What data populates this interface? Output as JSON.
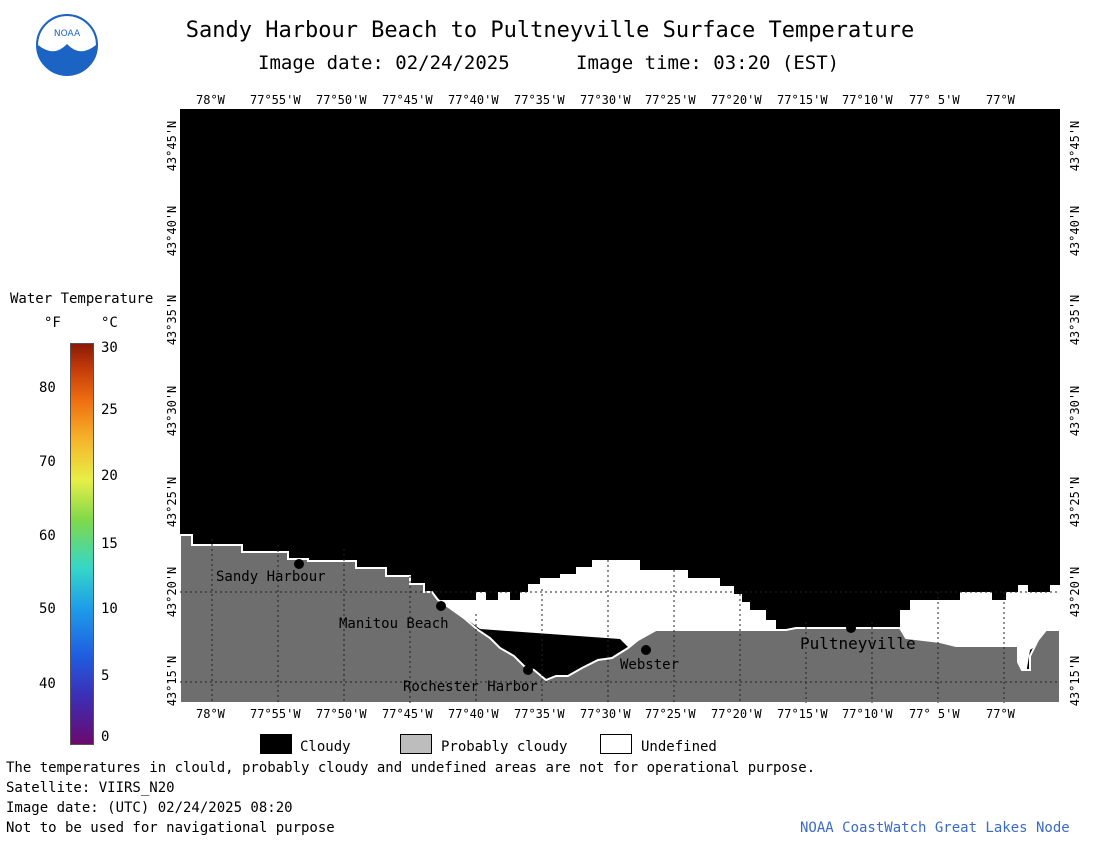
{
  "title": "Sandy Harbour Beach to Pultneyville Surface Temperature",
  "image_date_label": "Image date: 02/24/2025",
  "image_time_label": "Image time: 03:20 (EST)",
  "lon_ticks": [
    "78°W",
    "77°55'W",
    "77°50'W",
    "77°45'W",
    "77°40'W",
    "77°35'W",
    "77°30'W",
    "77°25'W",
    "77°20'W",
    "77°15'W",
    "77°10'W",
    "77° 5'W",
    "77°W"
  ],
  "lat_ticks": [
    "43°45'N",
    "43°40'N",
    "43°35'N",
    "43°30'N",
    "43°25'N",
    "43°20'N",
    "43°15'N"
  ],
  "places": [
    {
      "name": "Sandy Harbour"
    },
    {
      "name": "Manitou Beach"
    },
    {
      "name": "Rochester Harbor"
    },
    {
      "name": "Webster"
    },
    {
      "name": "Pultneyville"
    }
  ],
  "scale": {
    "title": "Water Temperature",
    "unit_f": "°F",
    "unit_c": "°C",
    "f_ticks": [
      "80",
      "70",
      "60",
      "50",
      "40"
    ],
    "c_ticks": [
      "30",
      "25",
      "20",
      "15",
      "10",
      "5",
      "0"
    ]
  },
  "legend": {
    "cloudy": "Cloudy",
    "probably_cloudy": "Probably cloudy",
    "undefined": "Undefined"
  },
  "colors": {
    "cloudy": "#000000",
    "land": "#6e6e6e",
    "probably_cloudy": "#bdbdbd",
    "undefined": "#ffffff"
  },
  "footer": {
    "disclaimer": "The temperatures in clould, probably cloudy and undefined areas are not for operational purpose.",
    "satellite": "Satellite: VIIRS_N20",
    "utc_date": "Image date: (UTC) 02/24/2025  08:20",
    "nav": "Not to be used for navigational purpose",
    "node": "NOAA CoastWatch Great Lakes Node"
  },
  "logo": {
    "text": "NOAA"
  }
}
